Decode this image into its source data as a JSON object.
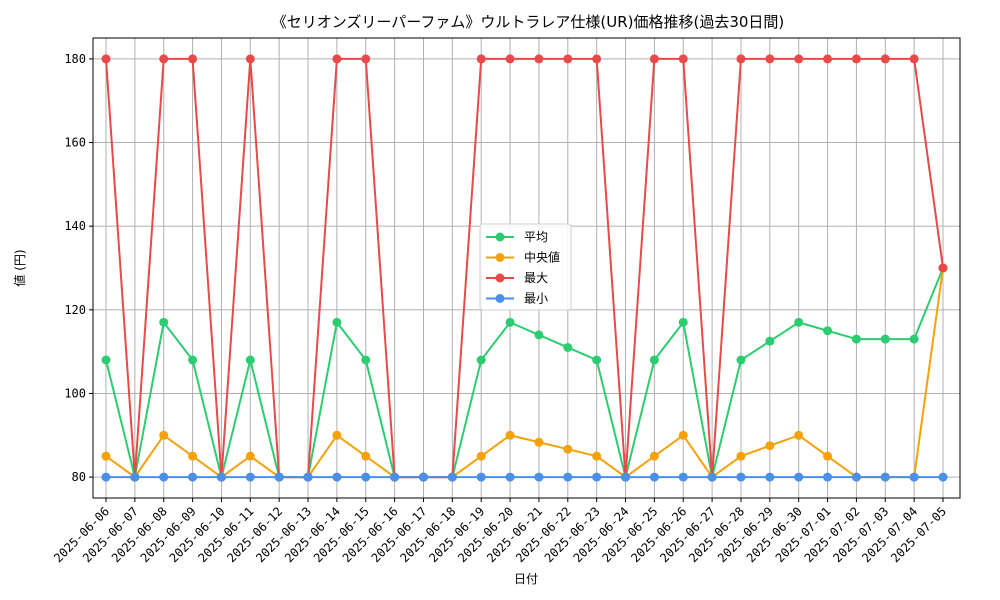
{
  "chart_data": {
    "type": "line",
    "title": "《セリオンズリーパーファム》ウルトラレア仕様(UR)価格推移(過去30日間)",
    "xlabel": "日付",
    "ylabel": "値 (円)",
    "ylim": [
      75,
      185
    ],
    "yticks": [
      80,
      100,
      120,
      140,
      160,
      180
    ],
    "grid": true,
    "legend_position": "center",
    "categories": [
      "2025-06-06",
      "2025-06-07",
      "2025-06-08",
      "2025-06-09",
      "2025-06-10",
      "2025-06-11",
      "2025-06-12",
      "2025-06-13",
      "2025-06-14",
      "2025-06-15",
      "2025-06-16",
      "2025-06-17",
      "2025-06-18",
      "2025-06-19",
      "2025-06-20",
      "2025-06-21",
      "2025-06-22",
      "2025-06-23",
      "2025-06-24",
      "2025-06-25",
      "2025-06-26",
      "2025-06-27",
      "2025-06-28",
      "2025-06-29",
      "2025-06-30",
      "2025-07-01",
      "2025-07-02",
      "2025-07-03",
      "2025-07-04",
      "2025-07-05"
    ],
    "series": [
      {
        "name": "平均",
        "color": "#2ecc71",
        "values": [
          108,
          80,
          117,
          108,
          80,
          108,
          80,
          80,
          117,
          108,
          80,
          80,
          80,
          108,
          117,
          114,
          111,
          108,
          80,
          108,
          117,
          80,
          108,
          112.5,
          117,
          115,
          113,
          113,
          113,
          130
        ]
      },
      {
        "name": "中央値",
        "color": "#f5a10a",
        "values": [
          85,
          80,
          90,
          85,
          80,
          85,
          80,
          80,
          90,
          85,
          80,
          80,
          80,
          85,
          90,
          88.33,
          86.67,
          85,
          80,
          85,
          90,
          80,
          85,
          87.5,
          90,
          85,
          80,
          80,
          80,
          130
        ]
      },
      {
        "name": "最大",
        "color": "#e84a4a",
        "values": [
          180,
          80,
          180,
          180,
          80,
          180,
          80,
          80,
          180,
          180,
          80,
          80,
          80,
          180,
          180,
          180,
          180,
          180,
          80,
          180,
          180,
          80,
          180,
          180,
          180,
          180,
          180,
          180,
          180,
          130
        ]
      },
      {
        "name": "最小",
        "color": "#4a90e8",
        "values": [
          80,
          80,
          80,
          80,
          80,
          80,
          80,
          80,
          80,
          80,
          80,
          80,
          80,
          80,
          80,
          80,
          80,
          80,
          80,
          80,
          80,
          80,
          80,
          80,
          80,
          80,
          80,
          80,
          80,
          80
        ]
      }
    ]
  }
}
